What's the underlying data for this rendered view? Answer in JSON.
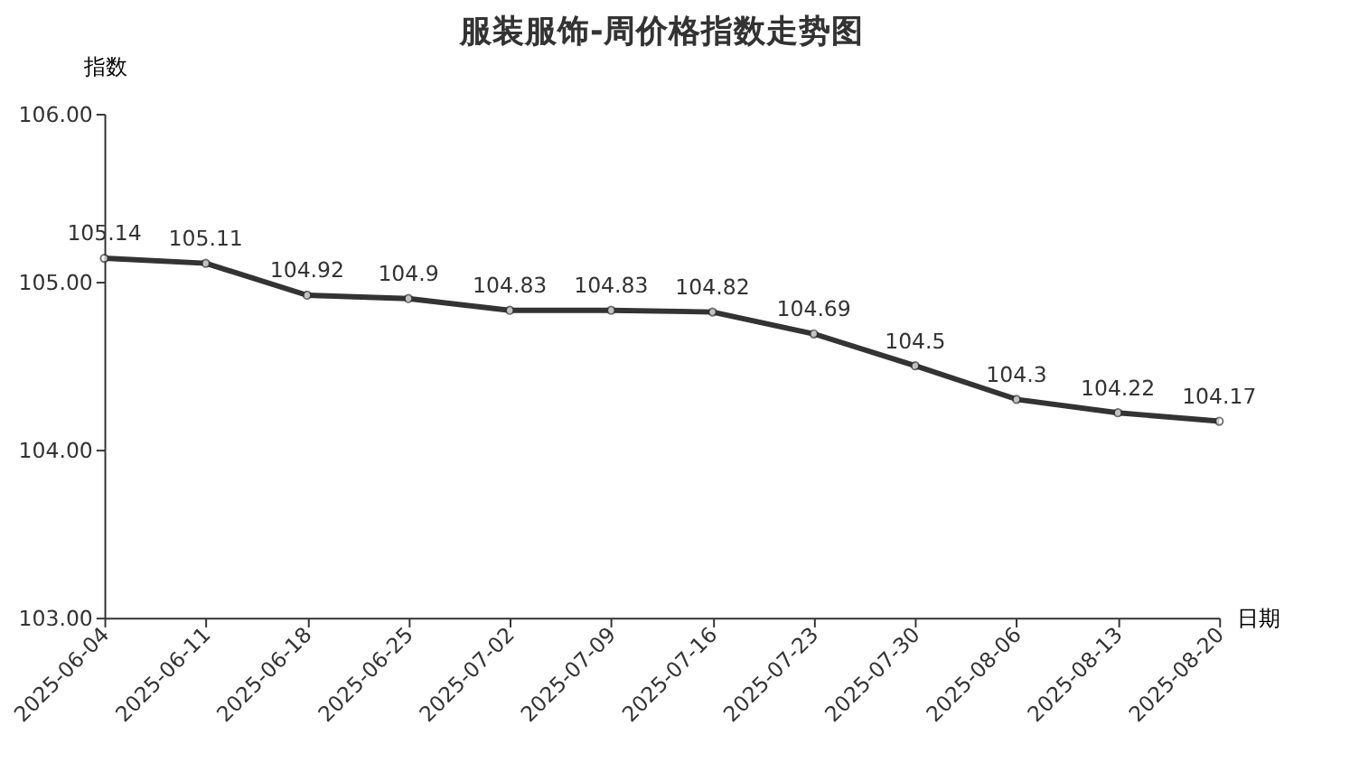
{
  "chart_data": {
    "type": "line",
    "title": "服装服饰-周价格指数走势图",
    "xlabel": "日期",
    "ylabel": "指数",
    "categories": [
      "2025-06-04",
      "2025-06-11",
      "2025-06-18",
      "2025-06-25",
      "2025-07-02",
      "2025-07-09",
      "2025-07-16",
      "2025-07-23",
      "2025-07-30",
      "2025-08-06",
      "2025-08-13",
      "2025-08-20"
    ],
    "series": [
      {
        "color": "#333333",
        "values": [
          105.14,
          105.11,
          104.92,
          104.9,
          104.83,
          104.83,
          104.82,
          104.69,
          104.5,
          104.3,
          104.22,
          104.17
        ]
      }
    ],
    "ylim": [
      103,
      106
    ],
    "yticks": [
      {
        "value": 103,
        "label": "103.00"
      },
      {
        "value": 104,
        "label": "104.00"
      },
      {
        "value": 105,
        "label": "105.00"
      },
      {
        "value": 106,
        "label": "106.00"
      }
    ],
    "data_labels": true,
    "marker": "circle",
    "line_style": "solid",
    "grid": false,
    "legend": false
  }
}
